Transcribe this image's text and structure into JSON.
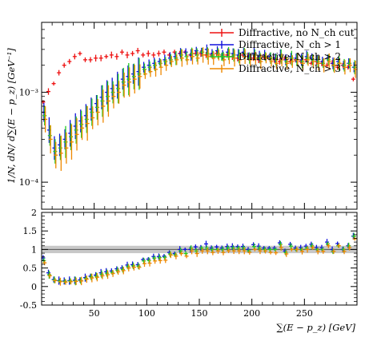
{
  "chart_data": [
    {
      "type": "scatter",
      "panel": "main",
      "title": "",
      "xlabel": "",
      "ylabel": "1/N, dN/ d∑(E − p_z) [GeV⁻¹]",
      "yscale": "log",
      "xlim": [
        0,
        300
      ],
      "ylim": [
        5e-05,
        0.006
      ],
      "yticks": [
        {
          "value": 0.0001,
          "label": "10⁻⁴"
        },
        {
          "value": 0.001,
          "label": "10⁻³"
        }
      ],
      "legend_position": "top-right",
      "legend": [
        {
          "label": "Diffractive, no N_ch cut",
          "color": "#ee1111"
        },
        {
          "label": "Diffractive, N_ch > 1",
          "color": "#1111dd"
        },
        {
          "label": "Diffractive, N_ch > 2",
          "color": "#22cc22"
        },
        {
          "label": "Diffractive, N_ch > 3",
          "color": "#ee8800"
        }
      ],
      "series": [
        {
          "name": "Diffractive, no N_ch cut",
          "color": "#ee1111",
          "x": [
            2.5,
            7.5,
            12.5,
            17.5,
            22.5,
            27.5,
            32.5,
            37.5,
            42.5,
            47.5,
            52.5,
            57.5,
            62.5,
            67.5,
            72.5,
            77.5,
            82.5,
            87.5,
            92.5,
            97.5,
            102.5,
            107.5,
            112.5,
            117.5,
            122.5,
            127.5,
            132.5,
            137.5,
            142.5,
            147.5,
            152.5,
            157.5,
            162.5,
            167.5,
            172.5,
            177.5,
            182.5,
            187.5,
            192.5,
            197.5,
            202.5,
            207.5,
            212.5,
            217.5,
            222.5,
            227.5,
            232.5,
            237.5,
            242.5,
            247.5,
            252.5,
            257.5,
            262.5,
            267.5,
            272.5,
            277.5,
            282.5,
            287.5,
            292.5,
            297.5
          ],
          "y": [
            0.00078,
            0.00102,
            0.00125,
            0.00165,
            0.002,
            0.0022,
            0.0025,
            0.0027,
            0.0023,
            0.0023,
            0.0024,
            0.0024,
            0.0025,
            0.0026,
            0.0025,
            0.0028,
            0.0026,
            0.0027,
            0.0029,
            0.0026,
            0.0027,
            0.0026,
            0.0027,
            0.0028,
            0.0026,
            0.0028,
            0.0027,
            0.0028,
            0.0026,
            0.0027,
            0.0027,
            0.0026,
            0.0026,
            0.0027,
            0.0025,
            0.0026,
            0.0025,
            0.0024,
            0.0026,
            0.0025,
            0.0024,
            0.0023,
            0.0025,
            0.0024,
            0.0023,
            0.0022,
            0.0024,
            0.0022,
            0.0023,
            0.0022,
            0.0023,
            0.0021,
            0.0022,
            0.0021,
            0.002,
            0.0021,
            0.0019,
            0.002,
            0.0019,
            0.0014
          ]
        },
        {
          "name": "Diffractive, N_ch > 1",
          "color": "#1111dd",
          "x": [
            2.5,
            7.5,
            12.5,
            17.5,
            22.5,
            27.5,
            32.5,
            37.5,
            42.5,
            47.5,
            52.5,
            57.5,
            62.5,
            67.5,
            72.5,
            77.5,
            82.5,
            87.5,
            92.5,
            97.5,
            102.5,
            107.5,
            112.5,
            117.5,
            122.5,
            127.5,
            132.5,
            137.5,
            142.5,
            147.5,
            152.5,
            157.5,
            162.5,
            167.5,
            172.5,
            177.5,
            182.5,
            187.5,
            192.5,
            197.5,
            202.5,
            207.5,
            212.5,
            217.5,
            222.5,
            227.5,
            232.5,
            237.5,
            242.5,
            247.5,
            252.5,
            257.5,
            262.5,
            267.5,
            272.5,
            277.5,
            282.5,
            287.5,
            292.5,
            297.5
          ],
          "y": [
            0.0006,
            0.00038,
            0.00024,
            0.00026,
            0.0003,
            0.00035,
            0.00042,
            0.00048,
            0.00055,
            0.00065,
            0.00075,
            0.00088,
            0.001,
            0.0011,
            0.0012,
            0.0014,
            0.0015,
            0.0016,
            0.0017,
            0.0019,
            0.002,
            0.0021,
            0.0022,
            0.0023,
            0.0024,
            0.0025,
            0.0027,
            0.0028,
            0.0026,
            0.0029,
            0.0028,
            0.003,
            0.0027,
            0.0029,
            0.0026,
            0.0028,
            0.0027,
            0.0026,
            0.0028,
            0.0025,
            0.0027,
            0.0025,
            0.0026,
            0.0025,
            0.0024,
            0.0026,
            0.0023,
            0.0025,
            0.0024,
            0.0023,
            0.0025,
            0.0024,
            0.0023,
            0.0022,
            0.0024,
            0.0021,
            0.0022,
            0.002,
            0.0021,
            0.0019
          ]
        },
        {
          "name": "Diffractive, N_ch > 2",
          "color": "#22cc22",
          "x": [
            2.5,
            7.5,
            12.5,
            17.5,
            22.5,
            27.5,
            32.5,
            37.5,
            42.5,
            47.5,
            52.5,
            57.5,
            62.5,
            67.5,
            72.5,
            77.5,
            82.5,
            87.5,
            92.5,
            97.5,
            102.5,
            107.5,
            112.5,
            117.5,
            122.5,
            127.5,
            132.5,
            137.5,
            142.5,
            147.5,
            152.5,
            157.5,
            162.5,
            167.5,
            172.5,
            177.5,
            182.5,
            187.5,
            192.5,
            197.5,
            202.5,
            207.5,
            212.5,
            217.5,
            222.5,
            227.5,
            232.5,
            237.5,
            242.5,
            247.5,
            252.5,
            257.5,
            262.5,
            267.5,
            272.5,
            277.5,
            282.5,
            287.5,
            292.5,
            297.5
          ],
          "y": [
            0.00055,
            0.00033,
            0.00022,
            0.00024,
            0.00028,
            0.00032,
            0.00038,
            0.00044,
            0.0005,
            0.0006,
            0.00068,
            0.0008,
            0.0009,
            0.001,
            0.0011,
            0.0013,
            0.0014,
            0.0015,
            0.0016,
            0.0018,
            0.0019,
            0.002,
            0.0021,
            0.0022,
            0.0023,
            0.0024,
            0.0026,
            0.0025,
            0.0027,
            0.0026,
            0.0028,
            0.0027,
            0.0026,
            0.0027,
            0.0025,
            0.0027,
            0.0026,
            0.0025,
            0.0027,
            0.0024,
            0.0026,
            0.0024,
            0.0025,
            0.0024,
            0.0023,
            0.0025,
            0.0022,
            0.0024,
            0.0023,
            0.0022,
            0.0024,
            0.0023,
            0.0022,
            0.0021,
            0.0023,
            0.002,
            0.0021,
            0.002,
            0.0021,
            0.0019
          ]
        },
        {
          "name": "Diffractive, N_ch > 3",
          "color": "#ee8800",
          "x": [
            2.5,
            7.5,
            12.5,
            17.5,
            22.5,
            27.5,
            32.5,
            37.5,
            42.5,
            47.5,
            52.5,
            57.5,
            62.5,
            67.5,
            72.5,
            77.5,
            82.5,
            87.5,
            92.5,
            97.5,
            102.5,
            107.5,
            112.5,
            117.5,
            122.5,
            127.5,
            132.5,
            137.5,
            142.5,
            147.5,
            152.5,
            157.5,
            162.5,
            167.5,
            172.5,
            177.5,
            182.5,
            187.5,
            192.5,
            197.5,
            202.5,
            207.5,
            212.5,
            217.5,
            222.5,
            227.5,
            232.5,
            237.5,
            242.5,
            247.5,
            252.5,
            257.5,
            262.5,
            267.5,
            272.5,
            277.5,
            282.5,
            287.5,
            292.5,
            297.5
          ],
          "y": [
            0.0005,
            0.0003,
            0.0002,
            0.00021,
            0.00024,
            0.00028,
            0.00034,
            0.0004,
            0.00045,
            0.00052,
            0.0006,
            0.0007,
            0.0008,
            0.0009,
            0.001,
            0.0012,
            0.0013,
            0.0014,
            0.0015,
            0.0016,
            0.0017,
            0.0018,
            0.0019,
            0.002,
            0.0022,
            0.0023,
            0.0024,
            0.0023,
            0.0025,
            0.0024,
            0.0026,
            0.0025,
            0.0024,
            0.0026,
            0.0023,
            0.0025,
            0.0024,
            0.0023,
            0.0025,
            0.0023,
            0.0024,
            0.0022,
            0.0024,
            0.0022,
            0.0021,
            0.0023,
            0.0021,
            0.0022,
            0.0023,
            0.0021,
            0.0023,
            0.0022,
            0.0021,
            0.002,
            0.0022,
            0.002,
            0.0021,
            0.0019,
            0.002,
            0.0018
          ]
        }
      ]
    },
    {
      "type": "scatter",
      "panel": "ratio",
      "title": "",
      "xlabel": "∑(E − p_z) [GeV]",
      "ylabel": "",
      "xlim": [
        0,
        300
      ],
      "ylim": [
        -0.5,
        2
      ],
      "xticks": [
        50,
        100,
        150,
        200,
        250
      ],
      "yticks": [
        -0.5,
        0,
        0.5,
        1,
        1.5,
        2
      ],
      "reference_line": 1,
      "reference_band": [
        0.9,
        1.1
      ],
      "series": [
        {
          "name": "Diffractive, N_ch > 1",
          "color": "#1111dd",
          "x": [
            2.5,
            7.5,
            12.5,
            17.5,
            22.5,
            27.5,
            32.5,
            37.5,
            42.5,
            47.5,
            52.5,
            57.5,
            62.5,
            67.5,
            72.5,
            77.5,
            82.5,
            87.5,
            92.5,
            97.5,
            102.5,
            107.5,
            112.5,
            117.5,
            122.5,
            127.5,
            132.5,
            137.5,
            142.5,
            147.5,
            152.5,
            157.5,
            162.5,
            167.5,
            172.5,
            177.5,
            182.5,
            187.5,
            192.5,
            197.5,
            202.5,
            207.5,
            212.5,
            217.5,
            222.5,
            227.5,
            232.5,
            237.5,
            242.5,
            247.5,
            252.5,
            257.5,
            262.5,
            267.5,
            272.5,
            277.5,
            282.5,
            287.5,
            292.5,
            297.5
          ],
          "y": [
            0.77,
            0.37,
            0.19,
            0.16,
            0.15,
            0.16,
            0.17,
            0.18,
            0.24,
            0.28,
            0.31,
            0.37,
            0.4,
            0.42,
            0.48,
            0.5,
            0.58,
            0.59,
            0.59,
            0.73,
            0.74,
            0.81,
            0.81,
            0.82,
            0.92,
            0.89,
            1.0,
            1.0,
            1.0,
            1.07,
            1.04,
            1.15,
            1.04,
            1.07,
            1.04,
            1.08,
            1.08,
            1.08,
            1.08,
            1.0,
            1.13,
            1.09,
            1.04,
            1.04,
            1.04,
            1.18,
            0.96,
            1.14,
            1.04,
            1.05,
            1.09,
            1.14,
            1.05,
            1.05,
            1.2,
            1.0,
            1.16,
            1.0,
            1.1,
            1.36
          ]
        },
        {
          "name": "Diffractive, N_ch > 2",
          "color": "#22cc22",
          "x": [
            2.5,
            7.5,
            12.5,
            17.5,
            22.5,
            27.5,
            32.5,
            37.5,
            42.5,
            47.5,
            52.5,
            57.5,
            62.5,
            67.5,
            72.5,
            77.5,
            82.5,
            87.5,
            92.5,
            97.5,
            102.5,
            107.5,
            112.5,
            117.5,
            122.5,
            127.5,
            132.5,
            137.5,
            142.5,
            147.5,
            152.5,
            157.5,
            162.5,
            167.5,
            172.5,
            177.5,
            182.5,
            187.5,
            192.5,
            197.5,
            202.5,
            207.5,
            212.5,
            217.5,
            222.5,
            227.5,
            232.5,
            237.5,
            242.5,
            247.5,
            252.5,
            257.5,
            262.5,
            267.5,
            272.5,
            277.5,
            282.5,
            287.5,
            292.5,
            297.5
          ],
          "y": [
            0.7,
            0.32,
            0.18,
            0.15,
            0.14,
            0.15,
            0.15,
            0.16,
            0.22,
            0.26,
            0.28,
            0.33,
            0.36,
            0.38,
            0.44,
            0.46,
            0.54,
            0.56,
            0.55,
            0.69,
            0.7,
            0.77,
            0.78,
            0.79,
            0.88,
            0.86,
            0.96,
            0.89,
            1.04,
            0.96,
            1.04,
            1.04,
            1.0,
            1.0,
            1.0,
            1.04,
            1.04,
            1.04,
            1.04,
            0.96,
            1.08,
            1.04,
            1.0,
            1.0,
            1.0,
            1.14,
            0.92,
            1.09,
            1.0,
            1.0,
            1.04,
            1.1,
            1.0,
            1.0,
            1.15,
            0.95,
            1.1,
            1.0,
            1.1,
            1.36
          ]
        },
        {
          "name": "Diffractive, N_ch > 3",
          "color": "#ee8800",
          "x": [
            2.5,
            7.5,
            12.5,
            17.5,
            22.5,
            27.5,
            32.5,
            37.5,
            42.5,
            47.5,
            52.5,
            57.5,
            62.5,
            67.5,
            72.5,
            77.5,
            82.5,
            87.5,
            92.5,
            97.5,
            102.5,
            107.5,
            112.5,
            117.5,
            122.5,
            127.5,
            132.5,
            137.5,
            142.5,
            147.5,
            152.5,
            157.5,
            162.5,
            167.5,
            172.5,
            177.5,
            182.5,
            187.5,
            192.5,
            197.5,
            202.5,
            207.5,
            212.5,
            217.5,
            222.5,
            227.5,
            232.5,
            237.5,
            242.5,
            247.5,
            252.5,
            257.5,
            262.5,
            267.5,
            272.5,
            277.5,
            282.5,
            287.5,
            292.5,
            297.5
          ],
          "y": [
            0.64,
            0.29,
            0.16,
            0.13,
            0.12,
            0.13,
            0.14,
            0.15,
            0.2,
            0.23,
            0.25,
            0.29,
            0.32,
            0.35,
            0.4,
            0.43,
            0.5,
            0.52,
            0.52,
            0.62,
            0.63,
            0.69,
            0.7,
            0.71,
            0.85,
            0.82,
            0.89,
            0.82,
            0.96,
            0.89,
            0.96,
            0.96,
            0.92,
            0.96,
            0.92,
            0.96,
            0.96,
            0.96,
            0.96,
            0.92,
            1.0,
            0.96,
            0.96,
            0.92,
            0.91,
            1.05,
            0.88,
            1.0,
            1.0,
            0.95,
            1.0,
            1.05,
            0.95,
            0.95,
            1.1,
            0.95,
            1.1,
            0.95,
            1.05,
            1.29
          ]
        }
      ]
    }
  ]
}
